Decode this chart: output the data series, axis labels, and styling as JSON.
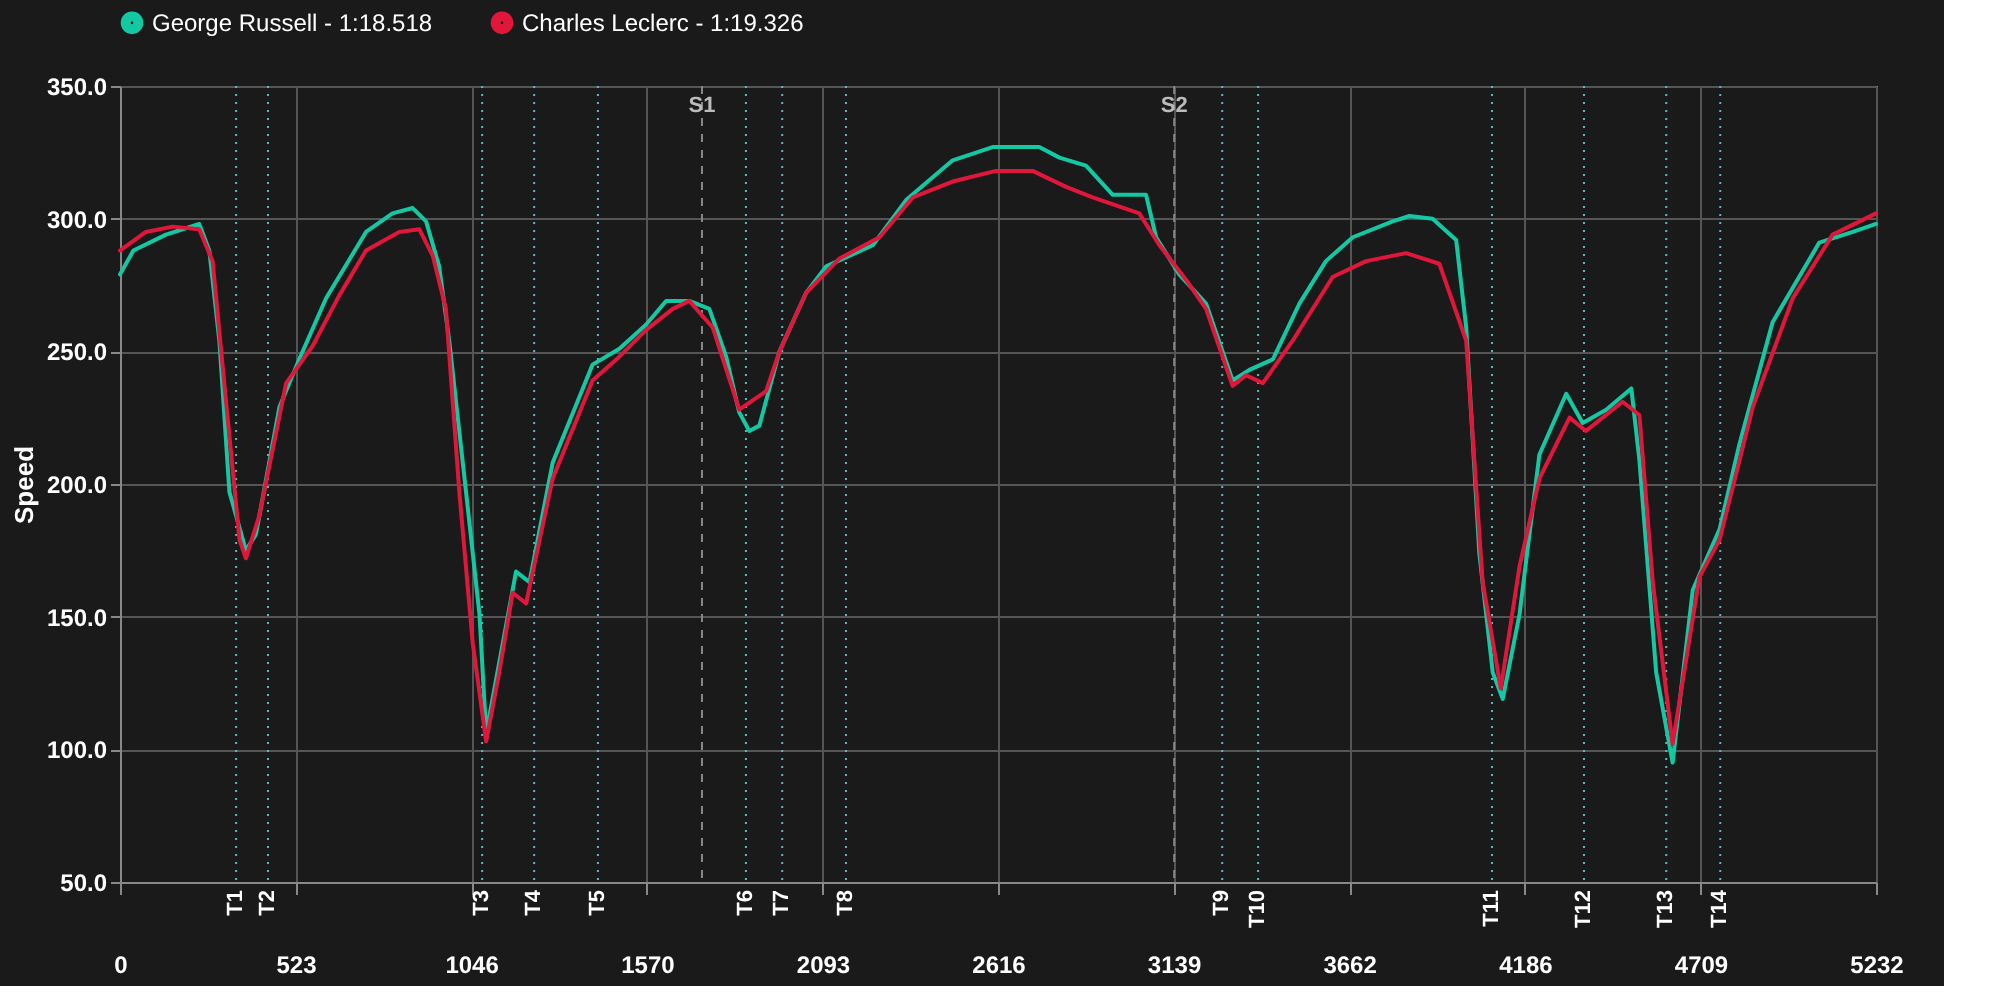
{
  "chart_data": {
    "type": "line",
    "ylabel": "Speed",
    "legend": "top",
    "grid": true,
    "marker": "none",
    "line_style": "solid",
    "xlim": [
      0,
      5232
    ],
    "xticks": [
      0,
      523,
      1046,
      1570,
      2093,
      2616,
      3139,
      3662,
      4186,
      4709,
      5232
    ],
    "ylim": [
      50,
      350
    ],
    "yticks": [
      {
        "value": 50,
        "label": "50.0"
      },
      {
        "value": 100,
        "label": "100.0"
      },
      {
        "value": 150,
        "label": "150.0"
      },
      {
        "value": 200,
        "label": "200.0"
      },
      {
        "value": 250,
        "label": "250.0"
      },
      {
        "value": 300,
        "label": "300.0"
      },
      {
        "value": 350,
        "label": "350.0"
      }
    ],
    "series": [
      {
        "name": "George Russell - 1:18.518",
        "color": "#13c9a3",
        "x": [
          0,
          40,
          137,
          236,
          266,
          296,
          326,
          375,
          405,
          475,
          534,
          614,
          733,
          812,
          872,
          912,
          951,
          981,
          1031,
          1071,
          1091,
          1180,
          1220,
          1289,
          1408,
          1488,
          1567,
          1627,
          1696,
          1756,
          1806,
          1845,
          1875,
          1905,
          1965,
          2044,
          2104,
          2243,
          2342,
          2481,
          2600,
          2640,
          2739,
          2799,
          2878,
          2958,
          3057,
          3087,
          3156,
          3236,
          3315,
          3365,
          3435,
          3514,
          3593,
          3673,
          3792,
          3842,
          3911,
          3981,
          4011,
          4050,
          4090,
          4120,
          4170,
          4229,
          4309,
          4358,
          4428,
          4503,
          4527,
          4577,
          4626,
          4686,
          4766,
          4825,
          4924,
          5063,
          5163,
          5232
        ],
        "values": [
          279,
          288,
          294,
          298,
          288,
          254,
          197,
          175,
          181,
          229,
          247,
          270,
          295,
          302,
          304,
          299,
          282,
          254,
          197,
          151,
          106,
          167,
          163,
          208,
          245,
          251,
          260,
          269,
          269,
          266,
          248,
          227,
          220,
          222,
          250,
          272,
          282,
          290,
          307,
          322,
          327,
          327,
          327,
          323,
          320,
          309,
          309,
          293,
          279,
          268,
          239,
          243,
          247,
          268,
          284,
          293,
          299,
          301,
          300,
          292,
          259,
          174,
          129,
          119,
          151,
          211,
          234,
          223,
          228,
          236,
          209,
          129,
          95,
          160,
          183,
          215,
          261,
          291,
          295,
          298
        ]
      },
      {
        "name": "Charles Leclerc - 1:19.326",
        "color": "#e0173a",
        "x": [
          0,
          77,
          157,
          236,
          276,
          316,
          356,
          375,
          415,
          495,
          574,
          653,
          733,
          832,
          892,
          932,
          971,
          1011,
          1051,
          1091,
          1130,
          1170,
          1210,
          1289,
          1408,
          1488,
          1567,
          1647,
          1696,
          1766,
          1845,
          1925,
          1965,
          2044,
          2144,
          2263,
          2362,
          2481,
          2610,
          2719,
          2819,
          2898,
          3037,
          3097,
          3176,
          3236,
          3315,
          3355,
          3405,
          3494,
          3613,
          3713,
          3832,
          3931,
          4011,
          4060,
          4114,
          4170,
          4229,
          4319,
          4368,
          4477,
          4527,
          4567,
          4626,
          4706,
          4766,
          4865,
          4984,
          5103,
          5232
        ],
        "values": [
          288,
          295,
          297,
          296,
          284,
          231,
          179,
          172,
          188,
          238,
          252,
          271,
          288,
          295,
          296,
          286,
          266,
          197,
          140,
          103,
          129,
          159,
          155,
          202,
          239,
          248,
          258,
          266,
          269,
          259,
          228,
          235,
          250,
          272,
          285,
          293,
          308,
          314,
          318,
          318,
          312,
          308,
          302,
          290,
          277,
          266,
          237,
          241,
          238,
          254,
          278,
          284,
          287,
          283,
          254,
          163,
          123,
          169,
          202,
          225,
          220,
          231,
          226,
          163,
          102,
          165,
          179,
          229,
          270,
          294,
          302
        ]
      }
    ],
    "ref_lines": [
      {
        "axis": "x",
        "value": 346,
        "label": "T1",
        "color": "#5fb8c0",
        "line_style": "dotted"
      },
      {
        "axis": "x",
        "value": 441,
        "label": "T2",
        "color": "#5fb8c0",
        "line_style": "dotted"
      },
      {
        "axis": "x",
        "value": 1079,
        "label": "T3",
        "color": "#5fb8c0",
        "line_style": "dotted"
      },
      {
        "axis": "x",
        "value": 1234,
        "label": "T4",
        "color": "#5fb8c0",
        "line_style": "dotted"
      },
      {
        "axis": "x",
        "value": 1424,
        "label": "T5",
        "color": "#5fb8c0",
        "line_style": "dotted"
      },
      {
        "axis": "x",
        "value": 1734,
        "label": "S1",
        "color": "#888888",
        "line_style": "dashed"
      },
      {
        "axis": "x",
        "value": 1865,
        "label": "T6",
        "color": "#5fb8c0",
        "line_style": "dotted"
      },
      {
        "axis": "x",
        "value": 1973,
        "label": "T7",
        "color": "#5fb8c0",
        "line_style": "dotted"
      },
      {
        "axis": "x",
        "value": 2163,
        "label": "T8",
        "color": "#5fb8c0",
        "line_style": "dotted"
      },
      {
        "axis": "x",
        "value": 3141,
        "label": "S2",
        "color": "#888888",
        "line_style": "dashed"
      },
      {
        "axis": "x",
        "value": 3284,
        "label": "T9",
        "color": "#5fb8c0",
        "line_style": "dotted"
      },
      {
        "axis": "x",
        "value": 3391,
        "label": "T10",
        "color": "#5fb8c0",
        "line_style": "dotted"
      },
      {
        "axis": "x",
        "value": 4088,
        "label": "T11",
        "color": "#5fb8c0",
        "line_style": "dotted"
      },
      {
        "axis": "x",
        "value": 4362,
        "label": "T12",
        "color": "#5fb8c0",
        "line_style": "dotted"
      },
      {
        "axis": "x",
        "value": 4607,
        "label": "T13",
        "color": "#5fb8c0",
        "line_style": "dotted"
      },
      {
        "axis": "x",
        "value": 4768,
        "label": "T14",
        "color": "#5fb8c0",
        "line_style": "dotted"
      }
    ]
  }
}
